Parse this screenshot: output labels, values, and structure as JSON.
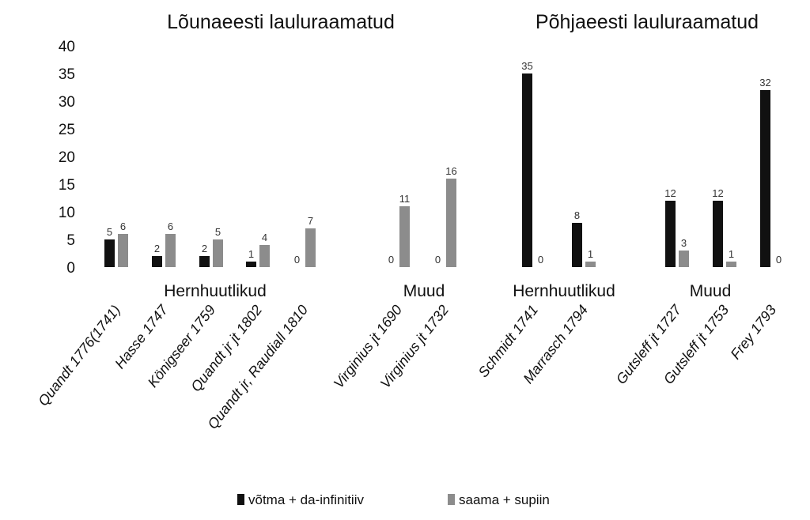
{
  "chart_data": {
    "type": "bar",
    "titles": [
      "Lõunaeesti lauluraamatud",
      "Põhjaeesti lauluraamatud"
    ],
    "groups": [
      "Hernhuutlikud",
      "Muud",
      "Hernhuutlikud",
      "Muud"
    ],
    "categories": [
      "Quandt 1776(1741)",
      "Hasse 1747",
      "Königseer 1759",
      "Quandt jr jt 1802",
      "Quandt jr, Raudiall 1810",
      "Virginius jt 1690",
      "Virginius jt 1732",
      "Schmidt 1741",
      "Marrasch 1794",
      "Gutsleff jt 1727",
      "Gutsleff jt 1753",
      "Frey 1793"
    ],
    "series": [
      {
        "name": "võtma + da-infinitiiv",
        "color": "#111111",
        "values": [
          5,
          2,
          2,
          1,
          0,
          0,
          0,
          35,
          8,
          12,
          12,
          32
        ],
        "labels": [
          "5",
          "2",
          "2",
          "1",
          "0",
          "0",
          "0",
          "35",
          "8",
          "12",
          "12",
          "32"
        ]
      },
      {
        "name": "saama + supiin",
        "color": "#8c8c8c",
        "values": [
          6,
          6,
          5,
          4,
          7,
          11,
          16,
          0,
          1,
          3,
          1,
          0
        ],
        "labels": [
          "6",
          "6",
          "5",
          "4",
          "7",
          "11",
          "16",
          "0",
          "1",
          "3",
          "1",
          "0"
        ]
      }
    ],
    "yticks": [
      "0",
      "5",
      "10",
      "15",
      "20",
      "25",
      "30",
      "35",
      "40"
    ],
    "ylim": [
      0,
      40
    ],
    "grid": false,
    "legend": "bottom"
  }
}
